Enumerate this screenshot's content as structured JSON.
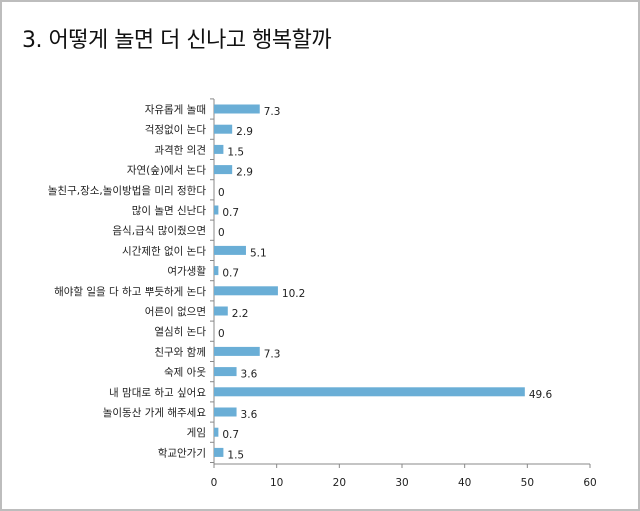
{
  "title": "3. 어떻게 놀면 더 신나고 행복할까",
  "chart_data": {
    "type": "bar",
    "orientation": "horizontal",
    "title": "3. 어떻게 놀면 더 신나고 행복할까",
    "xlabel": "",
    "ylabel": "",
    "xlim": [
      0,
      60
    ],
    "ticks": [
      0,
      10,
      20,
      30,
      40,
      50,
      60
    ],
    "grid": false,
    "legend": "none",
    "bar_color": "#6aaed6",
    "categories": [
      "자유롭게 놀때",
      "걱정없이 논다",
      "과격한 의견",
      "자연(숲)에서 논다",
      "놀친구,장소,놀이방법을 미리 정한다",
      "많이 놀면 신난다",
      "음식,급식 많이줬으면",
      "시간제한 없이 논다",
      "여가생활",
      "해야할 일을 다 하고 뿌듯하게 논다",
      "어른이 없으면",
      "열심히 논다",
      "친구와 함께",
      "숙제 아웃",
      "내 맘대로 하고 싶어요",
      "놀이동산 가게 해주세요",
      "게임",
      "학교안가기"
    ],
    "values": [
      7.3,
      2.9,
      1.5,
      2.9,
      0,
      0.7,
      0,
      5.1,
      0.7,
      10.2,
      2.2,
      0,
      7.3,
      3.6,
      49.6,
      3.6,
      0.7,
      1.5
    ]
  }
}
